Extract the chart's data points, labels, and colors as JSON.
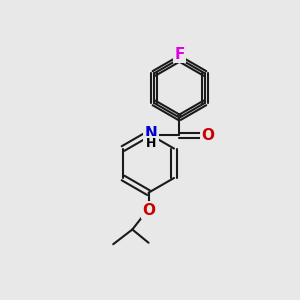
{
  "background_color": "#e8e8e8",
  "bond_color": "#1a1a1a",
  "bond_width": 1.5,
  "atom_colors": {
    "F": "#e000e0",
    "N": "#0000cc",
    "O": "#cc0000",
    "H": "#000000"
  }
}
